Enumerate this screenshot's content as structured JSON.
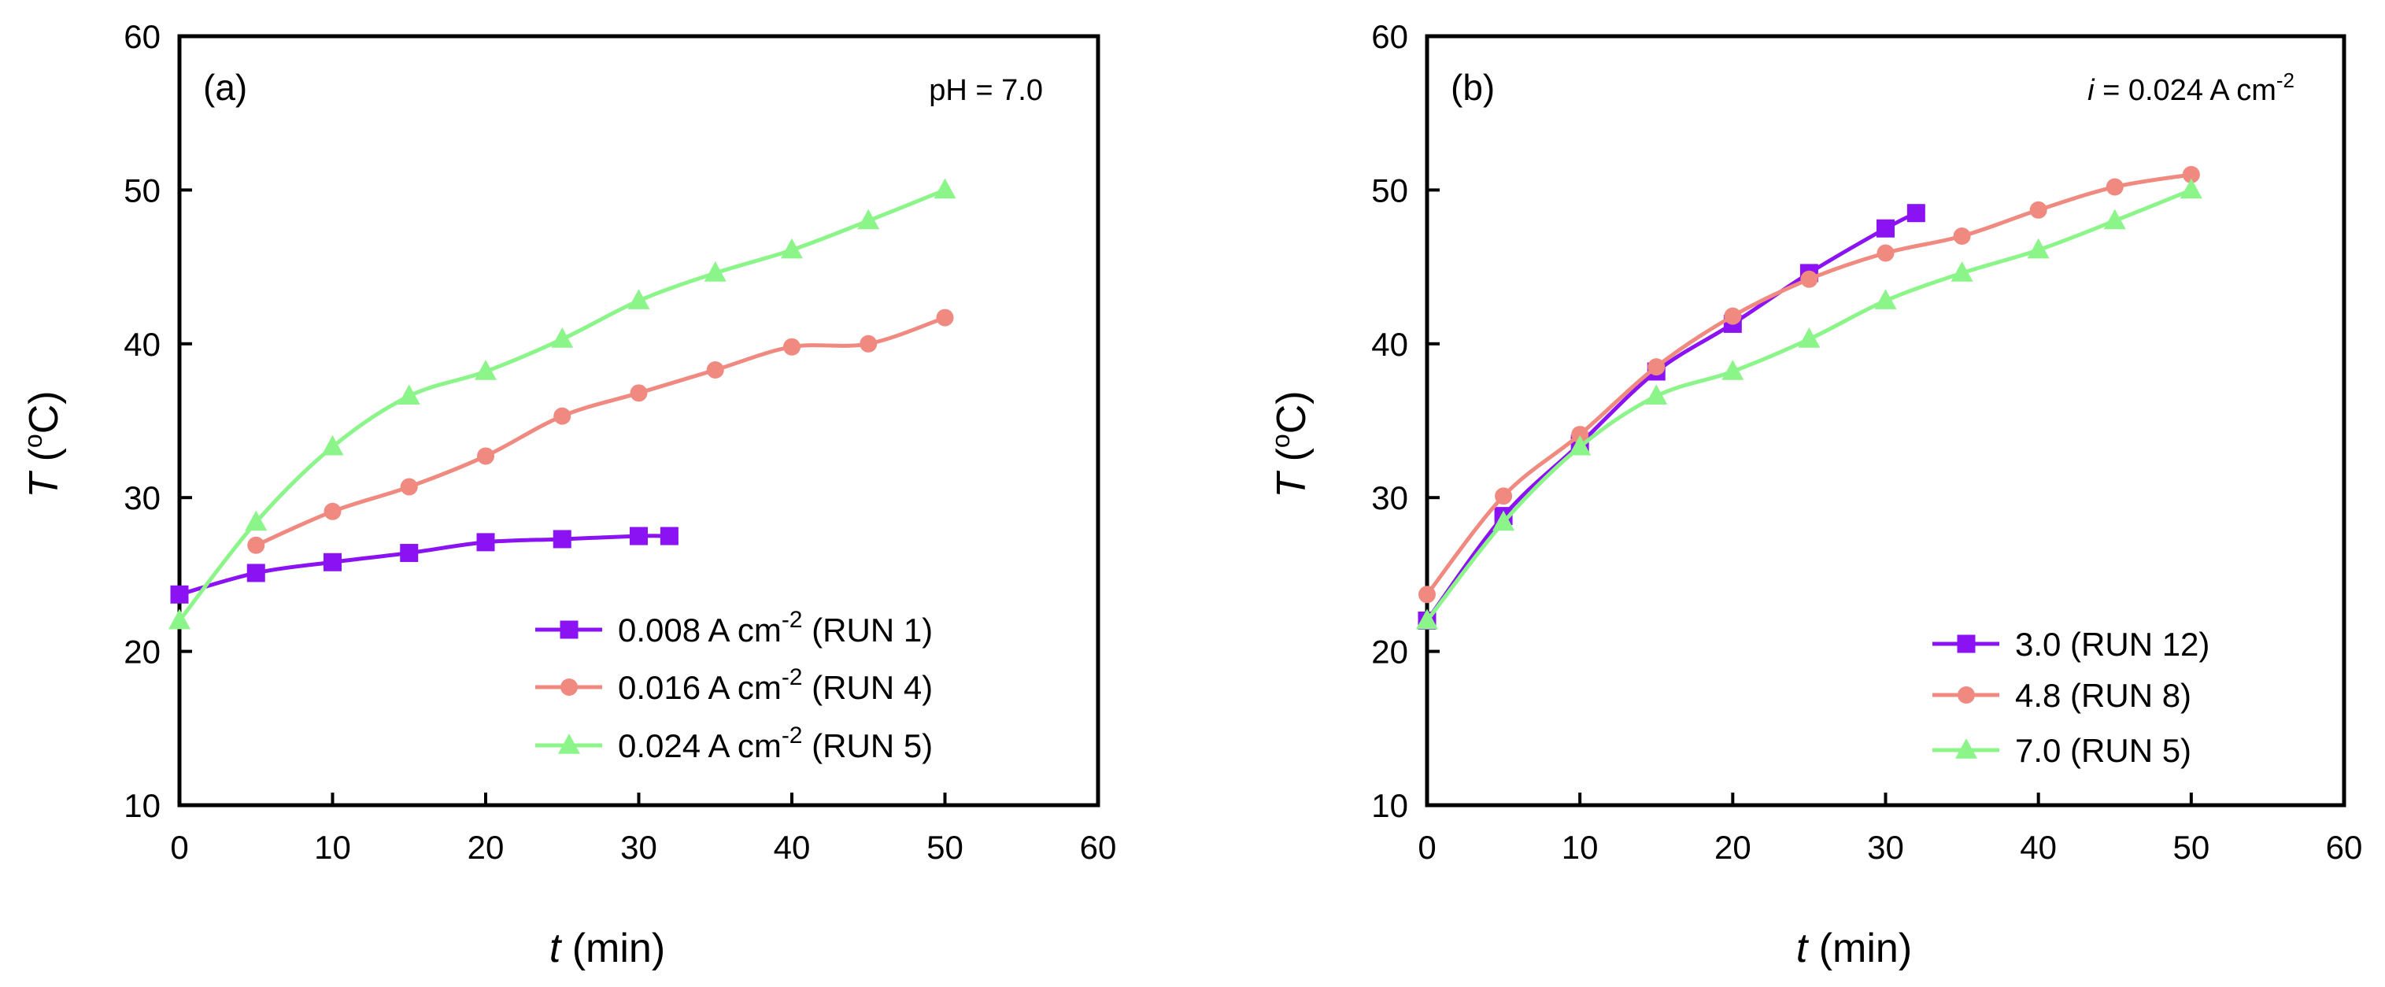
{
  "chart_data": [
    {
      "type": "line",
      "panel_label": "(a)",
      "annotation": {
        "text": "pH = 7.0"
      },
      "xlabel": {
        "var": "t",
        "unit": "(min)"
      },
      "ylabel": {
        "var": "T",
        "unit_open": "(",
        "unit_sup": "o",
        "unit_close": "C)"
      },
      "xlim": [
        0,
        60
      ],
      "ylim": [
        10,
        60
      ],
      "xticks": [
        0,
        10,
        20,
        30,
        40,
        50,
        60
      ],
      "yticks": [
        10,
        20,
        30,
        40,
        50,
        60
      ],
      "legend_position": "bottom-right",
      "series": [
        {
          "name": "0.008 A cm-2 (RUN 1)",
          "label_pre": "0.008 A cm",
          "label_sup": "-2",
          "label_post": " (RUN 1)",
          "marker": "square",
          "color": "#8b12f2",
          "x": [
            0,
            5,
            10,
            15,
            20,
            25,
            30,
            32
          ],
          "y": [
            23.7,
            25.1,
            25.8,
            26.4,
            27.1,
            27.3,
            27.5,
            27.5
          ]
        },
        {
          "name": "0.016 A cm-2 (RUN 4)",
          "label_pre": "0.016 A cm",
          "label_sup": "-2",
          "label_post": " (RUN 4)",
          "marker": "circle",
          "color": "#f08a80",
          "x": [
            5,
            10,
            15,
            20,
            25,
            30,
            35,
            40,
            45,
            50
          ],
          "y": [
            26.9,
            29.1,
            30.7,
            32.7,
            35.3,
            36.8,
            38.3,
            39.8,
            40.0,
            41.7
          ]
        },
        {
          "name": "0.024 A cm-2 (RUN 5)",
          "label_pre": "0.024 A cm",
          "label_sup": "-2",
          "label_post": " (RUN 5)",
          "marker": "triangle",
          "color": "#8cf58a",
          "x": [
            0,
            5,
            10,
            15,
            20,
            25,
            30,
            35,
            40,
            45,
            50
          ],
          "y": [
            22.0,
            28.4,
            33.3,
            36.6,
            38.2,
            40.3,
            42.8,
            44.6,
            46.1,
            48.0,
            50.0
          ]
        }
      ]
    },
    {
      "type": "line",
      "panel_label": "(b)",
      "annotation": {
        "italic": "i",
        "text": " = 0.024 A cm",
        "sup": "-2"
      },
      "xlabel": {
        "var": "t",
        "unit": "(min)"
      },
      "ylabel": {
        "var": "T",
        "unit_open": "(",
        "unit_sup": "o",
        "unit_close": "C)"
      },
      "xlim": [
        0,
        60
      ],
      "ylim": [
        10,
        60
      ],
      "xticks": [
        0,
        10,
        20,
        30,
        40,
        50,
        60
      ],
      "yticks": [
        10,
        20,
        30,
        40,
        50,
        60
      ],
      "legend_position": "bottom-right",
      "series": [
        {
          "name": "3.0 (RUN 12)",
          "label_pre": "3.0 (RUN 12)",
          "label_sup": "",
          "label_post": "",
          "marker": "square",
          "color": "#8b12f2",
          "x": [
            0,
            5,
            10,
            15,
            20,
            25,
            30,
            32
          ],
          "y": [
            22.0,
            28.8,
            33.5,
            38.2,
            41.3,
            44.6,
            47.5,
            48.5
          ]
        },
        {
          "name": "4.8 (RUN 8)",
          "label_pre": "4.8 (RUN 8)",
          "label_sup": "",
          "label_post": "",
          "marker": "circle",
          "color": "#f08a80",
          "x": [
            0,
            5,
            10,
            15,
            20,
            25,
            30,
            35,
            40,
            45,
            50
          ],
          "y": [
            23.7,
            30.1,
            34.1,
            38.5,
            41.8,
            44.2,
            45.9,
            47.0,
            48.7,
            50.2,
            51.0
          ]
        },
        {
          "name": "7.0 (RUN 5)",
          "label_pre": "7.0 (RUN 5)",
          "label_sup": "",
          "label_post": "",
          "marker": "triangle",
          "color": "#8cf58a",
          "x": [
            0,
            5,
            10,
            15,
            20,
            25,
            30,
            35,
            40,
            45,
            50
          ],
          "y": [
            22.0,
            28.4,
            33.3,
            36.6,
            38.2,
            40.3,
            42.8,
            44.6,
            46.1,
            48.0,
            50.0
          ]
        }
      ]
    }
  ]
}
